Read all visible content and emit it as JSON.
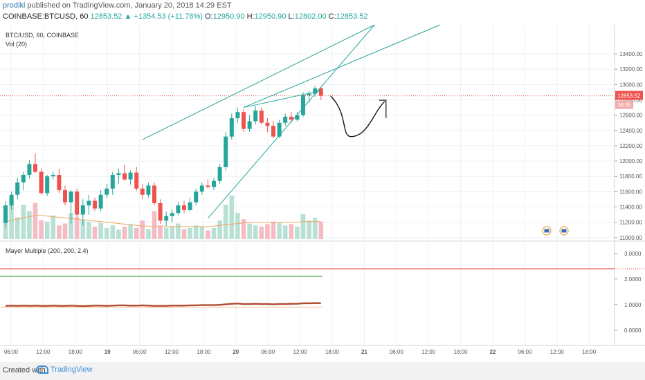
{
  "header": {
    "author": "prodiki",
    "published_text": "published on TradingView.com, January 20, 2018 14:29 EST",
    "symbol": "COINBASE:BTCUSD, 60",
    "change": "12853.52 ▲ +1354.53 (+11.78%)",
    "open_label": "O:",
    "open": "12950.90",
    "high_label": "H:",
    "high": "12950.90",
    "low_label": "L:",
    "low": "12802.00",
    "close_label": "C:",
    "close": "12853.52"
  },
  "footer": {
    "created_with": "Created with",
    "brand": "TradingView"
  },
  "colors": {
    "up": "#26a69a",
    "down": "#ef5350",
    "vol_up": "#b9e0d4",
    "vol_down": "#f6bcc4",
    "ma": "#f0a560",
    "trend": "#26a69a",
    "mayer": "#b04a30",
    "price_line": "#ef5350"
  },
  "chart_data": [
    {
      "type": "candlestick",
      "title": "BTC/USD, 60, COINBASE",
      "indicator_label": "Vol (20)",
      "y_ticks": [
        11000,
        11200,
        11400,
        11600,
        11800,
        12000,
        12200,
        12400,
        12600,
        12800,
        13000,
        13200,
        13400
      ],
      "ylim": [
        10980,
        13780
      ],
      "last_price_label": "12853.52",
      "countdown_label": "38:35",
      "x_labels": [
        "06:00",
        "12:00",
        "18:00",
        "19",
        "06:00",
        "12:00",
        "18:00",
        "20",
        "06:00",
        "12:00",
        "18:00",
        "21",
        "06:00",
        "12:00",
        "18:00",
        "22",
        "06:00",
        "12:00",
        "18:00"
      ],
      "candles": [
        {
          "o": 11190,
          "h": 11480,
          "l": 11130,
          "c": 11420
        },
        {
          "o": 11420,
          "h": 11600,
          "l": 11360,
          "c": 11560
        },
        {
          "o": 11560,
          "h": 11780,
          "l": 11500,
          "c": 11720
        },
        {
          "o": 11720,
          "h": 11860,
          "l": 11620,
          "c": 11820
        },
        {
          "o": 11820,
          "h": 12010,
          "l": 11770,
          "c": 11960
        },
        {
          "o": 11960,
          "h": 12100,
          "l": 11840,
          "c": 11860
        },
        {
          "o": 11860,
          "h": 11900,
          "l": 11560,
          "c": 11580
        },
        {
          "o": 11580,
          "h": 11820,
          "l": 11540,
          "c": 11800
        },
        {
          "o": 11800,
          "h": 11860,
          "l": 11760,
          "c": 11820
        },
        {
          "o": 11820,
          "h": 11900,
          "l": 11580,
          "c": 11620
        },
        {
          "o": 11620,
          "h": 11680,
          "l": 11420,
          "c": 11460
        },
        {
          "o": 11460,
          "h": 11620,
          "l": 11180,
          "c": 11600
        },
        {
          "o": 11600,
          "h": 11640,
          "l": 11260,
          "c": 11300
        },
        {
          "o": 11300,
          "h": 11500,
          "l": 11160,
          "c": 11420
        },
        {
          "o": 11420,
          "h": 11560,
          "l": 11300,
          "c": 11480
        },
        {
          "o": 11480,
          "h": 11520,
          "l": 11350,
          "c": 11380
        },
        {
          "o": 11380,
          "h": 11620,
          "l": 11340,
          "c": 11560
        },
        {
          "o": 11560,
          "h": 11700,
          "l": 11520,
          "c": 11640
        },
        {
          "o": 11640,
          "h": 11860,
          "l": 11560,
          "c": 11820
        },
        {
          "o": 11820,
          "h": 11900,
          "l": 11700,
          "c": 11840
        },
        {
          "o": 11840,
          "h": 11950,
          "l": 11740,
          "c": 11760
        },
        {
          "o": 11760,
          "h": 11880,
          "l": 11690,
          "c": 11850
        },
        {
          "o": 11850,
          "h": 11920,
          "l": 11610,
          "c": 11640
        },
        {
          "o": 11640,
          "h": 11700,
          "l": 11500,
          "c": 11560
        },
        {
          "o": 11560,
          "h": 11720,
          "l": 11520,
          "c": 11680
        },
        {
          "o": 11680,
          "h": 11720,
          "l": 11420,
          "c": 11450
        },
        {
          "o": 11450,
          "h": 11500,
          "l": 11180,
          "c": 11220
        },
        {
          "o": 11220,
          "h": 11340,
          "l": 11150,
          "c": 11280
        },
        {
          "o": 11280,
          "h": 11360,
          "l": 11200,
          "c": 11320
        },
        {
          "o": 11320,
          "h": 11470,
          "l": 11290,
          "c": 11420
        },
        {
          "o": 11420,
          "h": 11480,
          "l": 11320,
          "c": 11360
        },
        {
          "o": 11360,
          "h": 11520,
          "l": 11340,
          "c": 11460
        },
        {
          "o": 11460,
          "h": 11640,
          "l": 11420,
          "c": 11600
        },
        {
          "o": 11600,
          "h": 11720,
          "l": 11560,
          "c": 11680
        },
        {
          "o": 11680,
          "h": 11760,
          "l": 11640,
          "c": 11660
        },
        {
          "o": 11660,
          "h": 11780,
          "l": 11620,
          "c": 11740
        },
        {
          "o": 11740,
          "h": 11960,
          "l": 11700,
          "c": 11920
        },
        {
          "o": 11920,
          "h": 12380,
          "l": 11880,
          "c": 12320
        },
        {
          "o": 12320,
          "h": 12620,
          "l": 12280,
          "c": 12560
        },
        {
          "o": 12560,
          "h": 12700,
          "l": 12500,
          "c": 12640
        },
        {
          "o": 12640,
          "h": 12680,
          "l": 12380,
          "c": 12420
        },
        {
          "o": 12420,
          "h": 12600,
          "l": 12380,
          "c": 12520
        },
        {
          "o": 12520,
          "h": 12720,
          "l": 12480,
          "c": 12660
        },
        {
          "o": 12660,
          "h": 12700,
          "l": 12480,
          "c": 12500
        },
        {
          "o": 12500,
          "h": 12560,
          "l": 12380,
          "c": 12460
        },
        {
          "o": 12460,
          "h": 12520,
          "l": 12300,
          "c": 12320
        },
        {
          "o": 12320,
          "h": 12540,
          "l": 12300,
          "c": 12500
        },
        {
          "o": 12500,
          "h": 12620,
          "l": 12460,
          "c": 12580
        },
        {
          "o": 12580,
          "h": 12640,
          "l": 12500,
          "c": 12540
        },
        {
          "o": 12540,
          "h": 12640,
          "l": 12520,
          "c": 12600
        },
        {
          "o": 12600,
          "h": 12900,
          "l": 12580,
          "c": 12860
        },
        {
          "o": 12860,
          "h": 12920,
          "l": 12760,
          "c": 12880
        },
        {
          "o": 12880,
          "h": 12980,
          "l": 12840,
          "c": 12950
        },
        {
          "o": 12950,
          "h": 12960,
          "l": 12800,
          "c": 12854
        }
      ],
      "volume": [
        40,
        62,
        35,
        55,
        45,
        58,
        30,
        28,
        38,
        22,
        25,
        42,
        35,
        30,
        28,
        20,
        26,
        18,
        22,
        15,
        20,
        24,
        18,
        30,
        16,
        45,
        22,
        18,
        20,
        25,
        16,
        18,
        22,
        20,
        14,
        18,
        30,
        55,
        70,
        42,
        32,
        25,
        22,
        20,
        24,
        28,
        26,
        22,
        24,
        20,
        40,
        30,
        34,
        28
      ],
      "ma_volume": [
        28,
        30,
        32,
        34,
        36,
        38,
        38,
        37,
        36,
        35,
        34,
        33,
        32,
        31,
        30,
        29,
        28,
        27,
        26,
        25,
        24,
        23,
        22,
        21,
        21,
        20,
        20,
        20,
        20,
        20,
        20,
        20,
        20,
        20,
        20,
        21,
        22,
        23,
        24,
        25,
        26,
        27,
        27,
        27,
        27,
        27,
        27,
        27,
        27,
        27,
        28,
        28,
        28,
        28
      ]
    },
    {
      "type": "line",
      "title": "Mayer Multiple (200, 200, 2.4)",
      "y_ticks": [
        0,
        1,
        2,
        3
      ],
      "y_tick_labels": [
        "0.0000",
        "1.0000",
        "2.0000",
        "3.0000"
      ],
      "ylim": [
        -0.6,
        3.4
      ],
      "threshold_upper": 2.4,
      "threshold_lower": 2.1,
      "baseline": 0.9,
      "mayer_values": [
        0.95,
        0.96,
        0.95,
        0.96,
        0.95,
        0.96,
        0.95,
        0.95,
        0.96,
        0.95,
        0.95,
        0.96,
        0.95,
        0.94,
        0.95,
        0.96,
        0.96,
        0.95,
        0.96,
        0.97,
        0.97,
        0.96,
        0.96,
        0.97,
        0.96,
        0.95,
        0.95,
        0.95,
        0.96,
        0.96,
        0.96,
        0.97,
        0.97,
        0.98,
        0.98,
        0.98,
        0.99,
        1.01,
        1.03,
        1.04,
        1.02,
        1.02,
        1.03,
        1.02,
        1.02,
        1.01,
        1.02,
        1.02,
        1.03,
        1.03,
        1.05,
        1.05,
        1.06,
        1.05
      ]
    }
  ]
}
